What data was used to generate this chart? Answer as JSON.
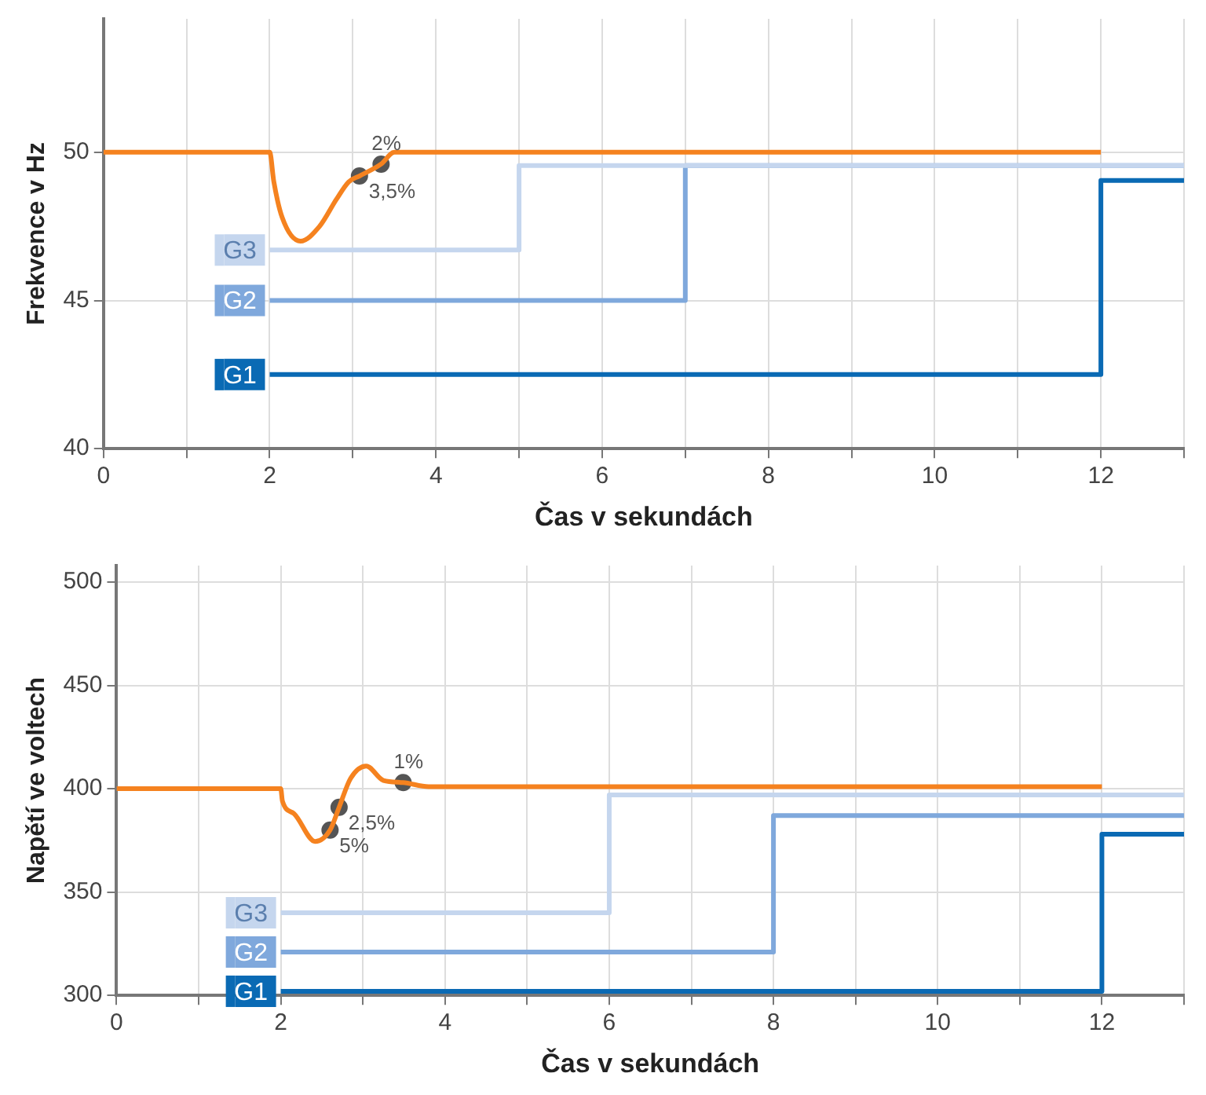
{
  "chart_data": [
    {
      "type": "step",
      "xlabel": "Čas v sekundách",
      "ylabel": "Frekvence v Hz",
      "xlim": [
        0,
        13
      ],
      "ylim": [
        40,
        54.5
      ],
      "xticks": [
        0,
        {
          "value": 1,
          "label": null
        },
        2,
        {
          "value": 3,
          "label": null
        },
        4,
        {
          "value": 5,
          "label": null
        },
        6,
        {
          "value": 7,
          "label": null
        },
        8,
        {
          "value": 9,
          "label": null
        },
        10,
        {
          "value": 11,
          "label": null
        },
        12,
        {
          "value": 13,
          "label": null
        }
      ],
      "yticks": [
        40,
        45,
        50
      ],
      "grid": true,
      "legend": "left",
      "series": [
        {
          "type": "line",
          "color": "#f5821f",
          "x": [
            0,
            2,
            2.05,
            2.15,
            2.37,
            2.6,
            2.8,
            2.95,
            3.08,
            3.34,
            3.5,
            12
          ],
          "values": [
            50,
            50,
            49,
            47.8,
            47,
            47.5,
            48.4,
            49,
            49.2,
            49.6,
            50,
            50
          ]
        },
        {
          "name": "G3",
          "color": "#c5d6ee",
          "x": [
            2,
            5,
            13
          ],
          "values": [
            46.7,
            49.55,
            49.55
          ]
        },
        {
          "name": "G2",
          "color": "#7fa8dc",
          "x": [
            2,
            7,
            13
          ],
          "values": [
            45,
            49.55,
            49.55
          ]
        },
        {
          "name": "G1",
          "color": "#0a6ab4",
          "x": [
            2,
            12,
            13
          ],
          "values": [
            42.5,
            49.05,
            49.05
          ]
        },
        {
          "type": "scatter",
          "color": "#555555",
          "x": [
            3.08,
            3.34
          ],
          "values": [
            49.2,
            49.6
          ]
        }
      ],
      "annotations": [
        {
          "text": "3,5%",
          "x": 3.08,
          "y": 49.2
        },
        {
          "text": "2%",
          "x": 3.34,
          "y": 49.6
        }
      ]
    },
    {
      "type": "step",
      "xlabel": "Čas v sekundách",
      "ylabel": "Napětí ve voltech",
      "xlim": [
        0,
        13
      ],
      "ylim": [
        300,
        508
      ],
      "xticks": [
        0,
        {
          "value": 1,
          "label": null
        },
        2,
        {
          "value": 3,
          "label": null
        },
        4,
        {
          "value": 5,
          "label": null
        },
        6,
        {
          "value": 7,
          "label": null
        },
        8,
        {
          "value": 9,
          "label": null
        },
        10,
        {
          "value": 11,
          "label": null
        },
        12,
        {
          "value": 13,
          "label": null
        }
      ],
      "yticks": [
        300,
        350,
        400,
        450,
        500
      ],
      "grid": true,
      "legend": "left",
      "series": [
        {
          "type": "line",
          "color": "#f5821f",
          "x": [
            0,
            2,
            2.02,
            2.16,
            2.42,
            2.6,
            2.71,
            2.85,
            3.04,
            3.25,
            3.49,
            3.8,
            12
          ],
          "values": [
            400,
            400,
            394,
            388,
            374.5,
            380,
            391,
            405,
            411,
            404,
            403,
            401,
            401
          ]
        },
        {
          "name": "G3",
          "color": "#c5d6ee",
          "x": [
            2,
            6,
            13
          ],
          "values": [
            340,
            397,
            397
          ]
        },
        {
          "name": "G2",
          "color": "#7fa8dc",
          "x": [
            2,
            8,
            13
          ],
          "values": [
            321,
            387,
            387
          ]
        },
        {
          "name": "G1",
          "color": "#0a6ab4",
          "x": [
            2,
            12,
            13
          ],
          "values": [
            302,
            378,
            378
          ]
        },
        {
          "type": "scatter",
          "color": "#555555",
          "x": [
            2.6,
            2.71,
            3.49
          ],
          "values": [
            380,
            391,
            403
          ]
        }
      ],
      "annotations": [
        {
          "text": "5%",
          "x": 2.6,
          "y": 380
        },
        {
          "text": "2,5%",
          "x": 2.71,
          "y": 391
        },
        {
          "text": "1%",
          "x": 3.49,
          "y": 403
        }
      ]
    }
  ]
}
